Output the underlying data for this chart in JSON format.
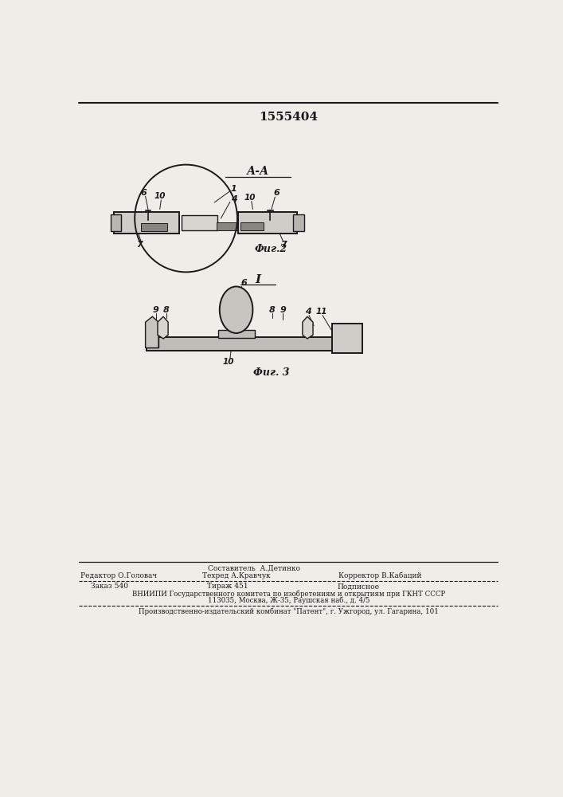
{
  "patent_number": "1555404",
  "fig2_label": "А-А",
  "fig2_caption": "Фиг.2",
  "fig3_label": "I",
  "fig3_caption": "Фиг. 3",
  "bg_color": "#f0ede8",
  "line_color": "#1a1a1a",
  "footer_line1": "Составитель  А.Детинко",
  "footer_editor": "Редактор О.Головач",
  "footer_techred": "Техред А.Кравчук",
  "footer_corrector": "Корректор В.Кабаций",
  "footer_zakaz": "Заказ 540",
  "footer_tiraj": "Тираж 451",
  "footer_podpisnoe": "Подписное",
  "footer_vniipи1": "ВНИИПИ Государственного комитета по изобретениям и открытиям при ГКНТ СССР",
  "footer_vniipи2": "113035, Москва, Ж-35, Раушская наб., д. 4/5",
  "footer_production": "Производственно-издательский комбинат \"Патент\", г. Ужгород, ул. Гагарина, 101"
}
